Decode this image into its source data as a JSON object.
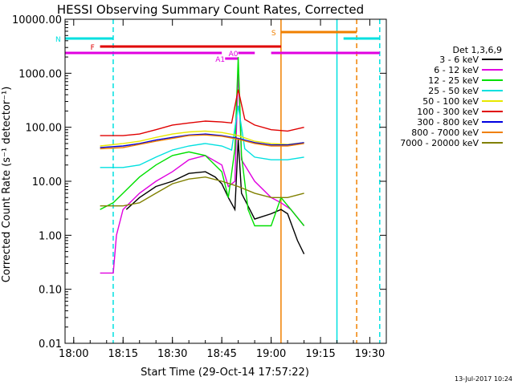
{
  "chart_data": {
    "type": "line",
    "title": "HESSI Observing Summary Count Rates, Corrected",
    "xlabel": "Start Time (29-Oct-14 17:57:22)",
    "ylabel": "Corrected Count Rate (s⁻¹ detector⁻¹)",
    "yscale": "log",
    "xlim": [
      "17:57:22",
      "19:35:00"
    ],
    "ylim": [
      0.01,
      10000
    ],
    "xticks": [
      "18:00",
      "18:15",
      "18:30",
      "18:45",
      "19:00",
      "19:15",
      "19:30"
    ],
    "yticks": [
      "0.01",
      "0.10",
      "1.00",
      "10.00",
      "100.00",
      "1000.00",
      "10000.00"
    ],
    "legend": {
      "title": "Det 1,3,6,9",
      "placement": "right",
      "series": [
        {
          "name": "3 - 6 keV",
          "color": "#000000"
        },
        {
          "name": "6 - 12 keV",
          "color": "#e000e0"
        },
        {
          "name": "12 - 25 keV",
          "color": "#00e000"
        },
        {
          "name": "25 - 50 keV",
          "color": "#00e0e0"
        },
        {
          "name": "50 - 100 keV",
          "color": "#e8e800"
        },
        {
          "name": "100 - 300 keV",
          "color": "#e00000"
        },
        {
          "name": "300 - 800 keV",
          "color": "#0000e0"
        },
        {
          "name": "800 - 7000 keV",
          "color": "#f08000"
        },
        {
          "name": "7000 - 20000 keV",
          "color": "#808000"
        }
      ]
    },
    "series": [
      {
        "name": "3 - 6 keV",
        "color": "#000000",
        "points": [
          [
            "18:16",
            3
          ],
          [
            "18:20",
            5
          ],
          [
            "18:25",
            8
          ],
          [
            "18:30",
            10
          ],
          [
            "18:35",
            14
          ],
          [
            "18:40",
            15
          ],
          [
            "18:43",
            12
          ],
          [
            "18:45",
            9
          ],
          [
            "18:47",
            5
          ],
          [
            "18:49",
            3
          ],
          [
            "18:50",
            60
          ],
          [
            "18:51",
            6
          ],
          [
            "18:55",
            2
          ],
          [
            "19:00",
            2.5
          ],
          [
            "19:03",
            3
          ],
          [
            "19:05",
            2.5
          ],
          [
            "19:08",
            0.8
          ],
          [
            "19:10",
            0.45
          ]
        ]
      },
      {
        "name": "6 - 12 keV",
        "color": "#e000e0",
        "points": [
          [
            "18:08",
            0.2
          ],
          [
            "18:12",
            0.2
          ],
          [
            "18:13",
            1
          ],
          [
            "18:15",
            3
          ],
          [
            "18:20",
            6
          ],
          [
            "18:25",
            10
          ],
          [
            "18:30",
            15
          ],
          [
            "18:35",
            25
          ],
          [
            "18:40",
            30
          ],
          [
            "18:45",
            20
          ],
          [
            "18:47",
            8
          ],
          [
            "18:49",
            10
          ],
          [
            "18:50",
            1200
          ],
          [
            "18:51",
            25
          ],
          [
            "18:55",
            10
          ],
          [
            "19:00",
            5
          ],
          [
            "19:03",
            4
          ],
          [
            "19:06",
            3
          ],
          [
            "19:10",
            1.5
          ]
        ]
      },
      {
        "name": "12 - 25 keV",
        "color": "#00e000",
        "points": [
          [
            "18:08",
            3
          ],
          [
            "18:12",
            4
          ],
          [
            "18:15",
            6
          ],
          [
            "18:20",
            12
          ],
          [
            "18:25",
            20
          ],
          [
            "18:30",
            30
          ],
          [
            "18:35",
            35
          ],
          [
            "18:40",
            30
          ],
          [
            "18:45",
            15
          ],
          [
            "18:47",
            5
          ],
          [
            "18:49",
            40
          ],
          [
            "18:50",
            2000
          ],
          [
            "18:51",
            30
          ],
          [
            "18:53",
            3
          ],
          [
            "18:55",
            1.5
          ],
          [
            "19:00",
            1.5
          ],
          [
            "19:03",
            5
          ],
          [
            "19:06",
            3
          ],
          [
            "19:10",
            1.5
          ]
        ]
      },
      {
        "name": "25 - 50 keV",
        "color": "#00e0e0",
        "points": [
          [
            "18:08",
            18
          ],
          [
            "18:15",
            18
          ],
          [
            "18:20",
            20
          ],
          [
            "18:25",
            28
          ],
          [
            "18:30",
            38
          ],
          [
            "18:35",
            45
          ],
          [
            "18:40",
            50
          ],
          [
            "18:45",
            45
          ],
          [
            "18:48",
            38
          ],
          [
            "18:50",
            250
          ],
          [
            "18:52",
            40
          ],
          [
            "18:55",
            28
          ],
          [
            "19:00",
            25
          ],
          [
            "19:05",
            25
          ],
          [
            "19:10",
            28
          ]
        ]
      },
      {
        "name": "50 - 100 keV",
        "color": "#e8e800",
        "points": [
          [
            "18:08",
            45
          ],
          [
            "18:15",
            50
          ],
          [
            "18:20",
            55
          ],
          [
            "18:25",
            65
          ],
          [
            "18:30",
            75
          ],
          [
            "18:35",
            82
          ],
          [
            "18:40",
            85
          ],
          [
            "18:45",
            80
          ],
          [
            "18:50",
            70
          ],
          [
            "18:55",
            55
          ],
          [
            "19:00",
            50
          ],
          [
            "19:05",
            48
          ],
          [
            "19:10",
            52
          ]
        ]
      },
      {
        "name": "100 - 300 keV",
        "color": "#e00000",
        "points": [
          [
            "18:08",
            70
          ],
          [
            "18:15",
            70
          ],
          [
            "18:20",
            75
          ],
          [
            "18:25",
            90
          ],
          [
            "18:30",
            110
          ],
          [
            "18:35",
            120
          ],
          [
            "18:40",
            130
          ],
          [
            "18:45",
            125
          ],
          [
            "18:48",
            120
          ],
          [
            "18:50",
            500
          ],
          [
            "18:52",
            140
          ],
          [
            "18:55",
            110
          ],
          [
            "19:00",
            90
          ],
          [
            "19:05",
            85
          ],
          [
            "19:10",
            100
          ]
        ]
      },
      {
        "name": "300 - 800 keV",
        "color": "#0000e0",
        "points": [
          [
            "18:08",
            42
          ],
          [
            "18:15",
            45
          ],
          [
            "18:20",
            50
          ],
          [
            "18:25",
            58
          ],
          [
            "18:30",
            65
          ],
          [
            "18:35",
            72
          ],
          [
            "18:40",
            75
          ],
          [
            "18:45",
            70
          ],
          [
            "18:50",
            62
          ],
          [
            "18:55",
            52
          ],
          [
            "19:00",
            47
          ],
          [
            "19:05",
            47
          ],
          [
            "19:10",
            52
          ]
        ]
      },
      {
        "name": "800 - 7000 keV",
        "color": "#f08000",
        "points": [
          [
            "18:08",
            40
          ],
          [
            "18:15",
            42
          ],
          [
            "18:20",
            48
          ],
          [
            "18:25",
            55
          ],
          [
            "18:30",
            62
          ],
          [
            "18:35",
            70
          ],
          [
            "18:40",
            72
          ],
          [
            "18:45",
            68
          ],
          [
            "18:50",
            60
          ],
          [
            "18:55",
            50
          ],
          [
            "19:00",
            45
          ],
          [
            "19:05",
            45
          ],
          [
            "19:10",
            50
          ]
        ]
      },
      {
        "name": "7000 - 20000 keV",
        "color": "#808000",
        "points": [
          [
            "18:08",
            3.5
          ],
          [
            "18:15",
            3.5
          ],
          [
            "18:20",
            4
          ],
          [
            "18:25",
            6
          ],
          [
            "18:30",
            9
          ],
          [
            "18:35",
            11
          ],
          [
            "18:40",
            12
          ],
          [
            "18:45",
            10
          ],
          [
            "18:50",
            8
          ],
          [
            "18:55",
            6
          ],
          [
            "19:00",
            5
          ],
          [
            "19:05",
            5
          ],
          [
            "19:10",
            6
          ]
        ]
      }
    ],
    "flag_bars": [
      {
        "label": "N",
        "color": "#00e0e0",
        "segments": [
          [
            "17:57:22",
            "18:12"
          ],
          [
            "19:22",
            "19:33"
          ]
        ]
      },
      {
        "label": "F",
        "color": "#e00000",
        "segments": [
          [
            "18:08",
            "19:03"
          ]
        ]
      },
      {
        "label": "S",
        "color": "#f08000",
        "segments": [
          [
            "19:03",
            "19:26"
          ]
        ]
      },
      {
        "label": "",
        "color": "#e000e0",
        "segments": [
          [
            "17:57:22",
            "18:45"
          ],
          [
            "18:50",
            "18:55"
          ],
          [
            "19:00",
            "19:03"
          ],
          [
            "19:03",
            "19:33"
          ]
        ]
      },
      {
        "label": "A1",
        "color": "#e000e0",
        "segments": [
          [
            "18:46",
            "18:50"
          ]
        ]
      },
      {
        "label": "A0",
        "color": "#e000e0",
        "segments": [
          [
            "18:50",
            "18:55"
          ]
        ]
      }
    ],
    "vertical_lines": [
      {
        "time": "18:12",
        "color": "#00e0e0",
        "style": "dashed"
      },
      {
        "time": "19:03",
        "color": "#f08000",
        "style": "solid"
      },
      {
        "time": "19:20",
        "color": "#00e0e0",
        "style": "solid"
      },
      {
        "time": "19:26",
        "color": "#f08000",
        "style": "dashed"
      },
      {
        "time": "19:33",
        "color": "#00e0e0",
        "style": "dashed"
      }
    ],
    "grid": false
  },
  "footer": {
    "date_stamp": "13-Jul-2017 10:24"
  }
}
